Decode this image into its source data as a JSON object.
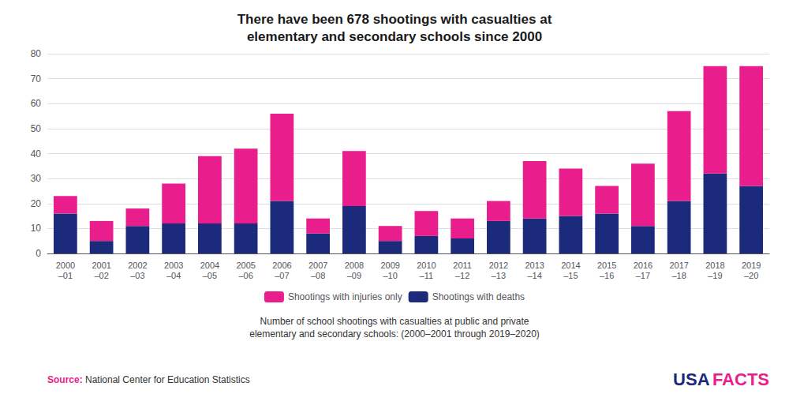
{
  "chart_data": {
    "type": "bar",
    "stacked": true,
    "title": "There have been 678 shootings with casualties at\nelementary and secondary schools since 2000",
    "subtitle": "Number of school shootings with casualties at public and private\nelementary and secondary schools: (2000–2001 through 2019–2020)",
    "categories": [
      "2000\n–01",
      "2001\n–02",
      "2002\n–03",
      "2003\n–04",
      "2004\n–05",
      "2005\n–06",
      "2006\n–07",
      "2007\n–08",
      "2008\n–09",
      "2009\n–10",
      "2010\n–11",
      "2011\n–12",
      "2012\n–13",
      "2013\n–14",
      "2014\n–15",
      "2015\n–16",
      "2016\n–17",
      "2017\n–18",
      "2018\n–19",
      "2019\n–20"
    ],
    "series": [
      {
        "name": "Shootings with injuries only",
        "color": "#E91E8C",
        "values": [
          7,
          8,
          7,
          16,
          27,
          30,
          35,
          6,
          22,
          6,
          10,
          8,
          8,
          23,
          19,
          11,
          25,
          36,
          43,
          48
        ]
      },
      {
        "name": "Shootings with deaths",
        "color": "#1B2A7B",
        "values": [
          16,
          5,
          11,
          12,
          12,
          12,
          21,
          8,
          19,
          5,
          7,
          6,
          13,
          14,
          15,
          16,
          11,
          21,
          32,
          27
        ]
      }
    ],
    "ylim": [
      0,
      80
    ],
    "yticks": [
      0,
      10,
      20,
      30,
      40,
      50,
      60,
      70,
      80
    ],
    "grid": true,
    "legend": "bottom",
    "annotations": [
      {
        "text": "Source:",
        "color": "#E91E8C"
      },
      {
        "text": "National Center for Education Statistics",
        "color": "#333333"
      },
      {
        "text": "USA",
        "color": "#1B2A7B"
      },
      {
        "text": "FACTS",
        "color": "#E91E8C"
      }
    ]
  }
}
